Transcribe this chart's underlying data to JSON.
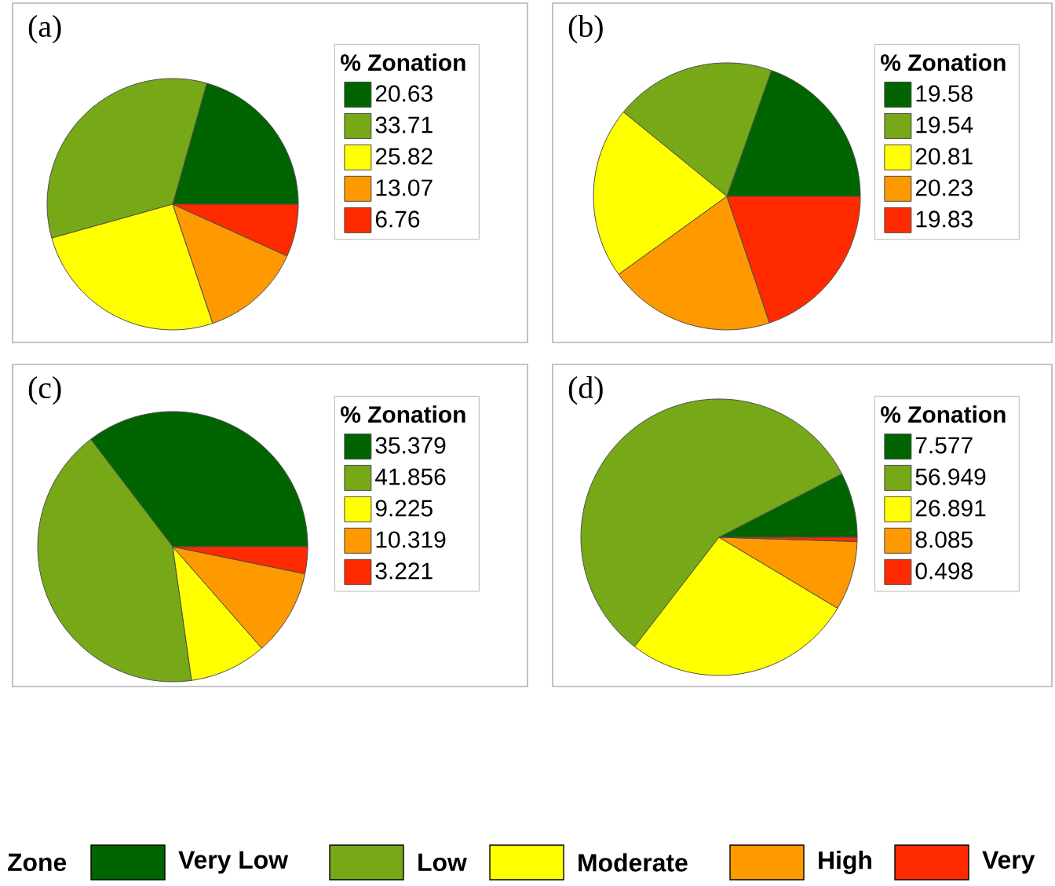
{
  "chart_data": [
    {
      "type": "pie",
      "title": "(a)",
      "legend_title": "% Zonation",
      "legend": "top right",
      "categories": [
        "20.63",
        "33.71",
        "25.82",
        "13.07",
        "6.76"
      ],
      "values": [
        20.63,
        33.71,
        25.82,
        13.07,
        6.76
      ],
      "colors": [
        "#006400",
        "#76a818",
        "#ffff00",
        "#ff9900",
        "#ff2a00"
      ]
    },
    {
      "type": "pie",
      "title": "(b)",
      "legend_title": "% Zonation",
      "legend": "top right",
      "categories": [
        "19.58",
        "19.54",
        "20.81",
        "20.23",
        "19.83"
      ],
      "values": [
        19.58,
        19.54,
        20.81,
        20.23,
        19.83
      ],
      "colors": [
        "#006400",
        "#76a818",
        "#ffff00",
        "#ff9900",
        "#ff2a00"
      ]
    },
    {
      "type": "pie",
      "title": "(c)",
      "legend_title": "% Zonation",
      "legend": "top right",
      "categories": [
        "35.379",
        "41.856",
        "9.225",
        "10.319",
        "3.221"
      ],
      "values": [
        35.379,
        41.856,
        9.225,
        10.319,
        3.221
      ],
      "colors": [
        "#006400",
        "#76a818",
        "#ffff00",
        "#ff9900",
        "#ff2a00"
      ]
    },
    {
      "type": "pie",
      "title": "(d)",
      "legend_title": "% Zonation",
      "legend": "top right",
      "categories": [
        "7.577",
        "56.949",
        "26.891",
        "8.085",
        "0.498"
      ],
      "values": [
        7.577,
        56.949,
        26.891,
        8.085,
        0.498
      ],
      "colors": [
        "#006400",
        "#76a818",
        "#ffff00",
        "#ff9900",
        "#ff2a00"
      ]
    },
    {
      "type": "other",
      "title": "Zone",
      "categories": [
        "Very Low",
        "Low",
        "Moderate",
        "High",
        "Very"
      ],
      "colors": [
        "#006400",
        "#76a818",
        "#ffff00",
        "#ff9900",
        "#ff2a00"
      ]
    }
  ]
}
